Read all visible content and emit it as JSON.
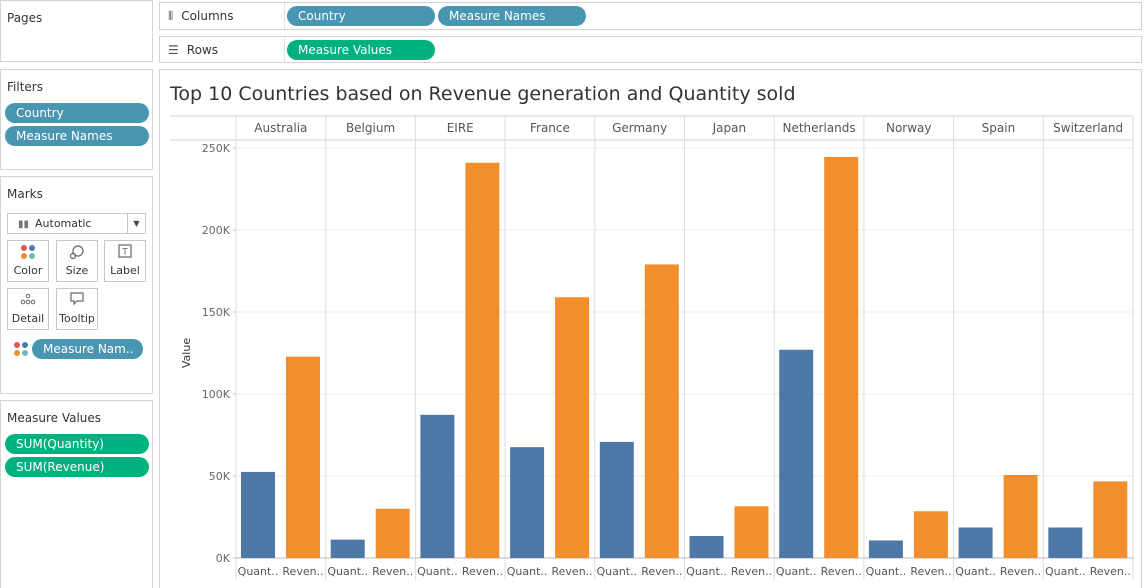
{
  "pages_panel": {
    "title": "Pages"
  },
  "filters_panel": {
    "title": "Filters",
    "pills": [
      "Country",
      "Measure Names"
    ]
  },
  "marks_panel": {
    "title": "Marks",
    "mark_type": "Automatic",
    "buttons": [
      {
        "label": "Color",
        "icon": "color-dots-icon"
      },
      {
        "label": "Size",
        "icon": "size-icon"
      },
      {
        "label": "Label",
        "icon": "label-icon"
      },
      {
        "label": "Detail",
        "icon": "detail-icon"
      },
      {
        "label": "Tooltip",
        "icon": "tooltip-icon"
      }
    ],
    "color_pill": "Measure Nam.."
  },
  "measure_values_panel": {
    "title": "Measure Values",
    "pills": [
      "SUM(Quantity)",
      "SUM(Revenue)"
    ]
  },
  "columns_shelf": {
    "label": "Columns",
    "pills": [
      "Country",
      "Measure Names"
    ]
  },
  "rows_shelf": {
    "label": "Rows",
    "pills": [
      "Measure Values"
    ]
  },
  "colors": {
    "quantity": "#4e79a7",
    "revenue": "#f28e2b",
    "pill_blue": "#4996b2",
    "pill_green": "#00b180"
  },
  "chart_data": {
    "type": "bar",
    "title": "Top 10 Countries based on Revenue generation and Quantity sold",
    "ylabel": "Value",
    "ylim": [
      0,
      250000
    ],
    "yticks": [
      0,
      50000,
      100000,
      150000,
      200000,
      250000
    ],
    "ytick_labels": [
      "0K",
      "50K",
      "100K",
      "150K",
      "200K",
      "250K"
    ],
    "categories": [
      "Australia",
      "Belgium",
      "EIRE",
      "France",
      "Germany",
      "Japan",
      "Netherlands",
      "Norway",
      "Spain",
      "Switzerland"
    ],
    "sub_labels": [
      "Quant..",
      "Reven.."
    ],
    "series": [
      {
        "key": "quantity",
        "values": [
          52500,
          11200,
          87300,
          67600,
          70800,
          13400,
          127000,
          10700,
          18600,
          18600
        ]
      },
      {
        "key": "revenue",
        "values": [
          122800,
          30000,
          241000,
          159000,
          179000,
          31500,
          244500,
          28500,
          50600,
          46700
        ]
      }
    ],
    "grid": true
  }
}
